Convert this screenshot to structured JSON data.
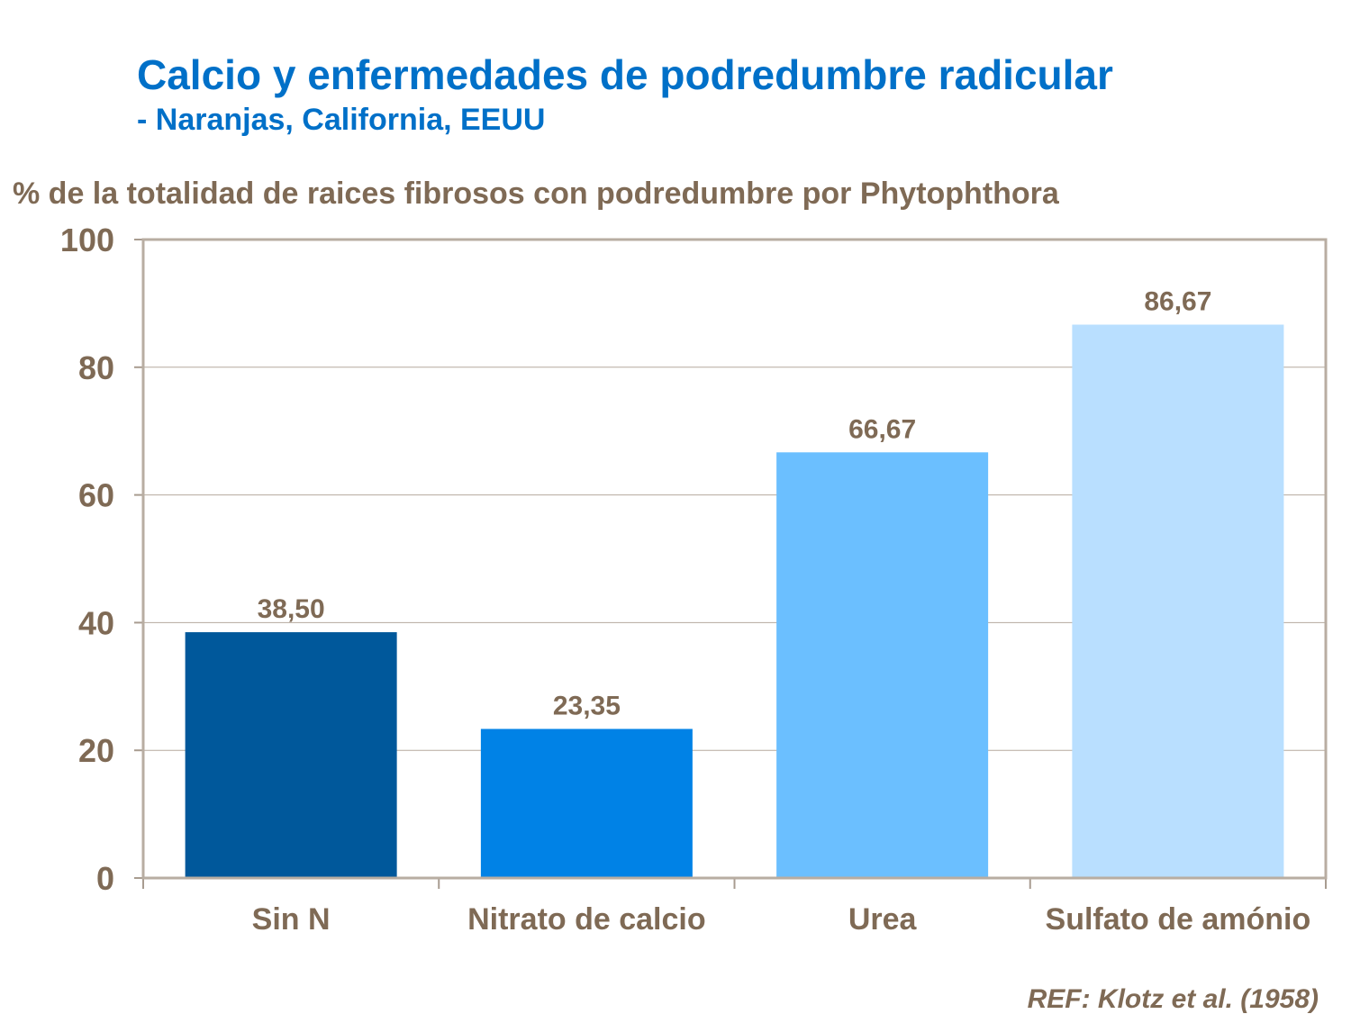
{
  "title": "Calcio y enfermedades de podredumbre radicular",
  "subtitle": "- Naranjas, California, EEUU",
  "reference": "REF: Klotz et al. (1958)",
  "chart_data": {
    "type": "bar",
    "title": "Calcio y enfermedades de podredumbre radicular",
    "ylabel": "% de la totalidad de raices fibrosos con podredumbre por Phytophthora",
    "xlabel": "",
    "categories": [
      "Sin N",
      "Nitrato de calcio",
      "Urea",
      "Sulfato de amónio"
    ],
    "values": [
      38.5,
      23.35,
      66.67,
      86.67
    ],
    "value_labels": [
      "38,50",
      "23,35",
      "66,67",
      "86,67"
    ],
    "colors": [
      "#00589B",
      "#0082E6",
      "#6BBFFF",
      "#B9DFFF"
    ],
    "ylim": [
      0,
      100
    ],
    "yticks": [
      0,
      20,
      40,
      60,
      80,
      100
    ],
    "grid": true,
    "legend": "none"
  }
}
